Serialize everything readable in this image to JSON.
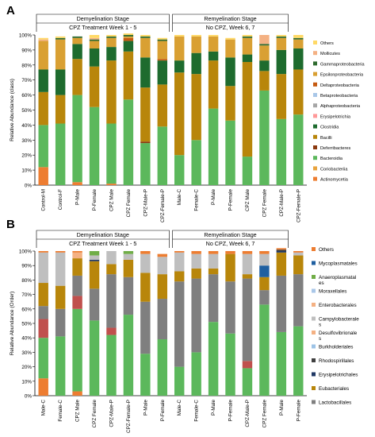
{
  "panel_a_label": "A",
  "panel_b_label": "B",
  "chart_data": [
    {
      "type": "bar",
      "stacked": true,
      "panel": "A",
      "ylabel": "Relative Abundance (class)",
      "ylim": [
        0,
        100
      ],
      "yticks": [
        "0%",
        "10%",
        "20%",
        "30%",
        "40%",
        "50%",
        "60%",
        "70%",
        "80%",
        "90%",
        "100%"
      ],
      "grid": false,
      "legend_position": "right",
      "groups": [
        {
          "label": "Demyelination Stage",
          "sublabel": "CPZ Treatment Week 1 - 5",
          "start": 0,
          "end": 7
        },
        {
          "label": "Remyelination Stage",
          "sublabel": "No CPZ, Week 6, 7",
          "start": 8,
          "end": 14
        }
      ],
      "categories": [
        "Control-M",
        "Control-F",
        "P-Male",
        "P-Female",
        "CPZ Male",
        "CPZ Female",
        "CPZ-Male-P",
        "CPZ-Female-P",
        "Male-C",
        "Female-C",
        "P-Male",
        "P-Female",
        "CPZ Male",
        "CPZ Female",
        "CPZ-Male-P",
        "CPZ-Female-P"
      ],
      "series": [
        {
          "name": "Actinomycetia",
          "color": "#ed7d31",
          "values": [
            12,
            0,
            2,
            0,
            1,
            0,
            0,
            0,
            0,
            0,
            0,
            0,
            0,
            0,
            0,
            0
          ]
        },
        {
          "name": "Coriobacteriia",
          "color": "#e8a33d",
          "values": [
            0,
            0,
            0,
            0,
            0,
            0,
            0,
            0,
            0,
            0,
            0,
            0,
            0,
            0,
            0,
            0
          ]
        },
        {
          "name": "Bacteroidia",
          "color": "#5cb85c",
          "values": [
            28,
            41,
            58,
            52,
            40,
            57,
            28,
            39,
            20,
            30,
            51,
            43,
            19,
            63,
            44,
            47
          ]
        },
        {
          "name": "Deferribacteres",
          "color": "#8b3a0f",
          "values": [
            0,
            0,
            0,
            0,
            0,
            0,
            1,
            0,
            0,
            0,
            0,
            0,
            0,
            0,
            0,
            0
          ]
        },
        {
          "name": "Bacilli",
          "color": "#b8860b",
          "values": [
            22,
            19,
            24,
            27,
            42,
            32,
            36,
            28,
            55,
            44,
            32,
            23,
            63,
            13,
            30,
            30
          ]
        },
        {
          "name": "Clostridia",
          "color": "#1e6b2e",
          "values": [
            15,
            17,
            10,
            12,
            9,
            7,
            20,
            16,
            8,
            14,
            6,
            19,
            5,
            7,
            16,
            14
          ]
        },
        {
          "name": "Erysipelotrichia",
          "color": "#ff9999",
          "values": [
            0,
            0,
            0,
            0,
            0,
            0,
            0,
            0,
            0,
            0,
            0,
            0,
            0,
            0,
            0,
            0
          ]
        },
        {
          "name": "Alphaproteobacteria",
          "color": "#a6a6a6",
          "values": [
            0,
            0,
            0,
            0,
            0,
            0,
            0,
            0,
            0,
            0,
            0,
            0,
            0,
            0,
            0,
            0
          ]
        },
        {
          "name": "Betaproteobacteria",
          "color": "#a9c7e8",
          "values": [
            0,
            0,
            0,
            0,
            0,
            0,
            0,
            0,
            0,
            0,
            0,
            0,
            0,
            0,
            0,
            0
          ]
        },
        {
          "name": "Deltaproteobacteria",
          "color": "#c55a11",
          "values": [
            0,
            0,
            0,
            0,
            0,
            2,
            0,
            1,
            0,
            0,
            0,
            0,
            0,
            0,
            0,
            0
          ]
        },
        {
          "name": "Epsilonproteobacteria",
          "color": "#d9a033",
          "values": [
            19,
            20,
            4,
            5,
            6,
            1,
            13,
            12,
            16,
            11,
            10,
            12,
            11,
            10,
            8,
            6
          ]
        },
        {
          "name": "Gammaproteobacteria",
          "color": "#2f6b2f",
          "values": [
            0,
            1,
            1,
            1,
            1,
            1,
            1,
            1,
            0,
            0,
            0,
            0,
            1,
            1,
            1,
            1
          ]
        },
        {
          "name": "Mollicutes",
          "color": "#f4b183",
          "values": [
            1,
            0,
            0,
            1,
            0,
            0,
            0,
            0,
            0,
            0,
            0,
            0,
            0,
            6,
            0,
            0
          ]
        },
        {
          "name": "Others",
          "color": "#ffd966",
          "values": [
            1,
            1,
            0,
            2,
            1,
            1,
            1,
            1,
            1,
            1,
            1,
            1,
            1,
            0,
            1,
            2
          ]
        }
      ]
    },
    {
      "type": "bar",
      "stacked": true,
      "panel": "B",
      "ylabel": "Relative Abundance (Order)",
      "ylim": [
        0,
        100
      ],
      "yticks": [
        "0%",
        "10%",
        "20%",
        "30%",
        "40%",
        "50%",
        "60%",
        "70%",
        "80%",
        "90%",
        "100%"
      ],
      "grid": false,
      "legend_position": "right",
      "groups": [
        {
          "label": "Demyelination Stage",
          "sublabel": "CPZ Treatment Week 1 - 5",
          "start": 0,
          "end": 7
        },
        {
          "label": "Remyelination Stage",
          "sublabel": "No CPZ, Week 6, 7",
          "start": 8,
          "end": 14
        }
      ],
      "categories": [
        "Male-C",
        "Female-C",
        "CPZ Male",
        "CPZ Female",
        "CPZ-Male-P",
        "CPZ-Female-P",
        "P-Male",
        "P-Female",
        "Male-C",
        "Female-C",
        "P-Male",
        "P-Female",
        "CPZ-Male-P",
        "CPZ Female",
        "P-Male",
        "P-Female"
      ],
      "series": [
        {
          "name": "Lactobacillales",
          "color": "#ed7d31",
          "values": [
            12,
            0,
            3,
            0,
            0,
            0,
            0,
            0,
            0,
            0,
            0,
            0,
            0,
            0,
            0,
            0
          ]
        },
        {
          "name": "",
          "color": "#5cb85c",
          "values": [
            28,
            41,
            57,
            52,
            42,
            56,
            29,
            39,
            20,
            30,
            51,
            43,
            19,
            63,
            44,
            48
          ]
        },
        {
          "name": "",
          "color": "#c0504d",
          "values": [
            13,
            0,
            9,
            0,
            5,
            0,
            0,
            0,
            0,
            0,
            0,
            0,
            5,
            0,
            0,
            0
          ]
        },
        {
          "name": "Lactobacillales",
          "color": "#7f7f7f",
          "values": [
            9,
            19,
            14,
            22,
            37,
            26,
            36,
            28,
            59,
            51,
            33,
            36,
            57,
            10,
            39,
            36
          ]
        },
        {
          "name": "Eubacteriales",
          "color": "#b8860b",
          "values": [
            16,
            16,
            12,
            19,
            7,
            12,
            20,
            17,
            7,
            7,
            4,
            19,
            3,
            9,
            16,
            13
          ]
        },
        {
          "name": "Erysipelotrichales",
          "color": "#203864",
          "values": [
            0,
            0,
            0,
            1,
            0,
            0,
            0,
            0,
            0,
            0,
            0,
            0,
            0,
            0,
            1,
            0
          ]
        },
        {
          "name": "Rhodospirillales",
          "color": "#404040",
          "values": [
            0,
            0,
            0,
            0,
            0,
            0,
            0,
            0,
            0,
            0,
            0,
            0,
            0,
            0,
            1,
            0
          ]
        },
        {
          "name": "Mycoplasmatales",
          "color": "#1f5fa0",
          "values": [
            0,
            0,
            0,
            0,
            0,
            0,
            0,
            0,
            0,
            0,
            0,
            0,
            0,
            8,
            0,
            0
          ]
        },
        {
          "name": "Campylobacterales",
          "color": "#bfbfbf",
          "values": [
            21,
            23,
            0,
            3,
            9,
            4,
            13,
            12,
            13,
            10,
            10,
            0,
            14,
            8,
            0,
            2
          ]
        },
        {
          "name": "Desulfovibrionales",
          "color": "#f4b183",
          "values": [
            0,
            0,
            4,
            0,
            0,
            0,
            0,
            0,
            0,
            0,
            0,
            0,
            0,
            0,
            0,
            0
          ]
        },
        {
          "name": "Anaeroplasmatales",
          "color": "#70ad47",
          "values": [
            0,
            0,
            0,
            3,
            0,
            2,
            0,
            0,
            0,
            0,
            0,
            0,
            0,
            0,
            0,
            0
          ]
        },
        {
          "name": "Others",
          "color": "#ed7d31",
          "values": [
            1,
            1,
            1,
            0,
            0,
            0,
            2,
            2,
            1,
            2,
            2,
            2,
            2,
            2,
            1,
            1
          ]
        }
      ]
    }
  ],
  "legend_a": [
    "Others",
    "Mollicutes",
    "Gammaproteobacteria",
    "Epsilonproteobacteria",
    "Deltaproteobacteria",
    "Betaproteobacteria",
    "Alphaproteobacteria",
    "Erysipelotrichia",
    "Clostridia",
    "Bacilli",
    "Deferribacteres",
    "Bacteroidia",
    "Coriobacteriia",
    "Actinomycetia"
  ],
  "legend_a_colors": [
    "#ffd966",
    "#f4b183",
    "#2f6b2f",
    "#d9a033",
    "#c55a11",
    "#a9c7e8",
    "#a6a6a6",
    "#ff9999",
    "#1e6b2e",
    "#b8860b",
    "#8b3a0f",
    "#5cb85c",
    "#e8a33d",
    "#ed7d31"
  ],
  "legend_b": [
    {
      "lines": [
        "Others"
      ],
      "color": "#ed7d31"
    },
    {
      "lines": [
        "Mycoplasmatales"
      ],
      "color": "#1f5fa0"
    },
    {
      "lines": [
        "Anaeroplasmatal",
        "es"
      ],
      "color": "#70ad47"
    },
    {
      "lines": [
        "Moraxellales"
      ],
      "color": "#a9c7e8"
    },
    {
      "lines": [
        "Enterobacterales"
      ],
      "color": "#f4b183"
    },
    {
      "lines": [
        "Campylobacterale",
        "s"
      ],
      "color": "#bfbfbf"
    },
    {
      "lines": [
        "Desulfovibrionale",
        "s"
      ],
      "color": "#f4b183"
    },
    {
      "lines": [
        "Burkholderiales"
      ],
      "color": "#9dc3e6"
    },
    {
      "lines": [
        "Rhodospirillales"
      ],
      "color": "#404040"
    },
    {
      "lines": [
        "Erysipelotrichales"
      ],
      "color": "#203864"
    },
    {
      "lines": [
        "Eubacteriales"
      ],
      "color": "#b8860b"
    },
    {
      "lines": [
        "Lactobacillales"
      ],
      "color": "#7f7f7f"
    }
  ]
}
